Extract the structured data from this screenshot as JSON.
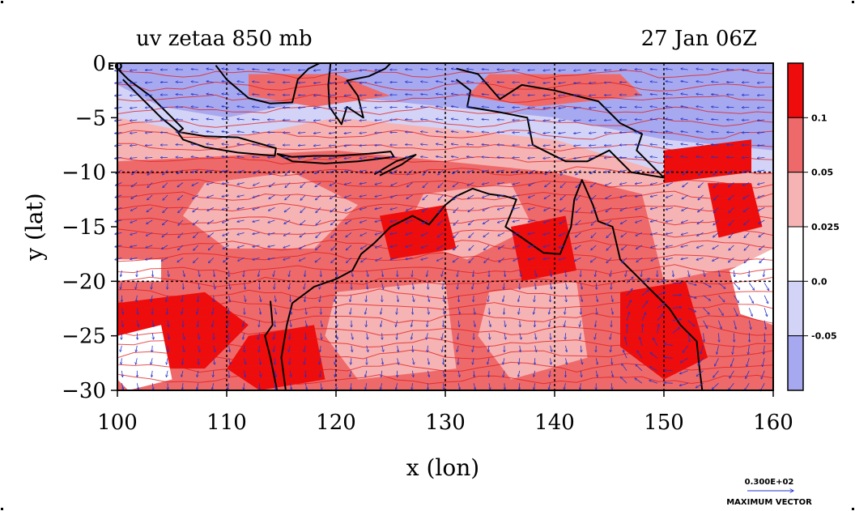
{
  "title_left": "uv zetaa 850 mb",
  "title_right": "27 Jan 06Z",
  "x_label": "x (lon)",
  "y_label": "y (lat)",
  "eq_label": "EQ",
  "legend_ref_value": "0.300E+02",
  "legend_ref_caption": "MAXIMUM VECTOR",
  "colors": {
    "red_strong": "#ee0c0c",
    "red_mid": "#ee6a6a",
    "red_light": "#f6b3b3",
    "white": "#ffffff",
    "blue_light": "#d3d3f7",
    "blue_mid": "#a7a9f0",
    "contour": "#e01818",
    "vector": "#2233cc",
    "coast": "#000000"
  },
  "chart_data": {
    "type": "heatmap",
    "x_axis": {
      "label": "x (lon)",
      "range": [
        100,
        160
      ],
      "ticks": [
        100,
        110,
        120,
        130,
        140,
        150,
        160
      ]
    },
    "y_axis": {
      "label": "y (lat)",
      "range": [
        -30,
        0
      ],
      "ticks": [
        0,
        -5,
        -10,
        -15,
        -20,
        -25,
        -30
      ]
    },
    "grid_lines_lon": [
      110,
      120,
      130,
      140,
      150
    ],
    "grid_lines_lat": [
      -10,
      -20
    ],
    "colorbar": {
      "labels": [
        "0.1",
        "0.05",
        "0.025",
        "0.0",
        "-0.05"
      ],
      "bins": [
        {
          "color": "#ee0c0c",
          "range": "> 0.1"
        },
        {
          "color": "#ee6a6a",
          "range": "0.05 – 0.1"
        },
        {
          "color": "#f6b3b3",
          "range": "0.025 – 0.05"
        },
        {
          "color": "#ffffff",
          "range": "0.0 – 0.025"
        },
        {
          "color": "#d3d3f7",
          "range": "-0.05 – 0.0"
        },
        {
          "color": "#a7a9f0",
          "range": "< -0.05"
        }
      ]
    },
    "regions": [
      {
        "fill": "#f6b3b3",
        "pts": [
          [
            100,
            -7
          ],
          [
            160,
            -7
          ],
          [
            160,
            -30
          ],
          [
            100,
            -30
          ]
        ]
      },
      {
        "fill": "#ee6a6a",
        "pts": [
          [
            100,
            -9
          ],
          [
            120,
            -8
          ],
          [
            140,
            -10
          ],
          [
            148,
            -12
          ],
          [
            150,
            -20
          ],
          [
            160,
            -18
          ],
          [
            160,
            -30
          ],
          [
            100,
            -30
          ]
        ]
      },
      {
        "fill": "#f6b3b3",
        "pts": [
          [
            108,
            -11
          ],
          [
            116,
            -10
          ],
          [
            122,
            -13
          ],
          [
            118,
            -17
          ],
          [
            110,
            -17
          ],
          [
            106,
            -14
          ]
        ]
      },
      {
        "fill": "#f6b3b3",
        "pts": [
          [
            128,
            -12
          ],
          [
            136,
            -11
          ],
          [
            138,
            -15
          ],
          [
            132,
            -18
          ],
          [
            126,
            -16
          ]
        ]
      },
      {
        "fill": "#f6b3b3",
        "pts": [
          [
            120,
            -21
          ],
          [
            130,
            -20
          ],
          [
            131,
            -28
          ],
          [
            122,
            -29
          ],
          [
            119,
            -25
          ]
        ]
      },
      {
        "fill": "#f6b3b3",
        "pts": [
          [
            134,
            -21
          ],
          [
            142,
            -20
          ],
          [
            143,
            -27
          ],
          [
            136,
            -29
          ],
          [
            133,
            -25
          ]
        ]
      },
      {
        "fill": "#ee0c0c",
        "pts": [
          [
            100,
            -22
          ],
          [
            108,
            -21
          ],
          [
            112,
            -24
          ],
          [
            108,
            -28
          ],
          [
            100,
            -28
          ]
        ]
      },
      {
        "fill": "#ee0c0c",
        "pts": [
          [
            112,
            -25
          ],
          [
            118,
            -24
          ],
          [
            119,
            -29
          ],
          [
            113,
            -30
          ],
          [
            110,
            -28
          ]
        ]
      },
      {
        "fill": "#ee0c0c",
        "pts": [
          [
            124,
            -14
          ],
          [
            130,
            -13
          ],
          [
            131,
            -17
          ],
          [
            125,
            -18
          ]
        ]
      },
      {
        "fill": "#ee0c0c",
        "pts": [
          [
            136,
            -15
          ],
          [
            141,
            -14
          ],
          [
            142,
            -19
          ],
          [
            137,
            -20
          ]
        ]
      },
      {
        "fill": "#ee0c0c",
        "pts": [
          [
            146,
            -21
          ],
          [
            152,
            -20
          ],
          [
            154,
            -27
          ],
          [
            150,
            -29
          ],
          [
            146,
            -26
          ]
        ]
      },
      {
        "fill": "#ee0c0c",
        "pts": [
          [
            154,
            -11
          ],
          [
            158,
            -11
          ],
          [
            159,
            -15
          ],
          [
            155,
            -16
          ]
        ]
      },
      {
        "fill": "#ffffff",
        "pts": [
          [
            100,
            -25
          ],
          [
            104,
            -24
          ],
          [
            105,
            -29
          ],
          [
            101,
            -30
          ],
          [
            100,
            -29
          ]
        ]
      },
      {
        "fill": "#ffffff",
        "pts": [
          [
            100,
            -18
          ],
          [
            104,
            -18
          ],
          [
            104,
            -20
          ],
          [
            100,
            -20
          ]
        ]
      },
      {
        "fill": "#ffffff",
        "pts": [
          [
            156,
            -19
          ],
          [
            160,
            -17
          ],
          [
            160,
            -24
          ],
          [
            157,
            -23
          ]
        ]
      },
      {
        "fill": "#a7a9f0",
        "pts": [
          [
            100,
            0
          ],
          [
            160,
            0
          ],
          [
            160,
            -8
          ],
          [
            150,
            -7
          ],
          [
            140,
            -5
          ],
          [
            130,
            -4
          ],
          [
            120,
            -3
          ],
          [
            110,
            -5
          ],
          [
            104,
            -4
          ],
          [
            100,
            -2
          ]
        ]
      },
      {
        "fill": "#d3d3f7",
        "pts": [
          [
            100,
            -2
          ],
          [
            104,
            -4
          ],
          [
            110,
            -5
          ],
          [
            120,
            -3
          ],
          [
            130,
            -4
          ],
          [
            140,
            -5
          ],
          [
            150,
            -7
          ],
          [
            160,
            -8
          ],
          [
            160,
            -10
          ],
          [
            150,
            -10
          ],
          [
            140,
            -7
          ],
          [
            130,
            -6
          ],
          [
            120,
            -5
          ],
          [
            110,
            -7
          ],
          [
            100,
            -5
          ]
        ]
      },
      {
        "fill": "#ee6a6a",
        "pts": [
          [
            112,
            -1
          ],
          [
            120,
            -1
          ],
          [
            125,
            -3
          ],
          [
            118,
            -4
          ],
          [
            112,
            -3
          ]
        ]
      },
      {
        "fill": "#ee6a6a",
        "pts": [
          [
            134,
            -1
          ],
          [
            146,
            -1
          ],
          [
            148,
            -3
          ],
          [
            138,
            -4
          ],
          [
            132,
            -3
          ]
        ]
      },
      {
        "fill": "#ee0c0c",
        "pts": [
          [
            150,
            -8
          ],
          [
            158,
            -7
          ],
          [
            158,
            -10
          ],
          [
            150,
            -11
          ]
        ]
      }
    ],
    "coastlines": [
      {
        "name": "sumatra",
        "pts": [
          [
            100,
            -0.5
          ],
          [
            101,
            -1.5
          ],
          [
            103,
            -3
          ],
          [
            105,
            -5
          ],
          [
            106,
            -6
          ],
          [
            105.6,
            -6.3
          ],
          [
            104,
            -5
          ],
          [
            102,
            -3
          ],
          [
            100.5,
            -1.5
          ]
        ]
      },
      {
        "name": "java",
        "pts": [
          [
            105.5,
            -6.3
          ],
          [
            108,
            -6.7
          ],
          [
            111,
            -6.8
          ],
          [
            114.5,
            -7.8
          ],
          [
            114.4,
            -8.5
          ],
          [
            111,
            -8.2
          ],
          [
            108,
            -7.7
          ],
          [
            106,
            -7
          ],
          [
            105.5,
            -6.3
          ]
        ]
      },
      {
        "name": "lesser-sunda",
        "pts": [
          [
            114.6,
            -8.3
          ],
          [
            116,
            -8.6
          ],
          [
            118,
            -8.5
          ],
          [
            120,
            -8.5
          ],
          [
            123,
            -8.3
          ],
          [
            125,
            -8.1
          ],
          [
            125.3,
            -8.6
          ],
          [
            122,
            -9
          ],
          [
            119,
            -9.2
          ],
          [
            116,
            -9
          ],
          [
            114.6,
            -8.3
          ]
        ]
      },
      {
        "name": "timor",
        "pts": [
          [
            123.5,
            -10.2
          ],
          [
            125.5,
            -9
          ],
          [
            127.3,
            -8.4
          ],
          [
            126,
            -9.3
          ],
          [
            124,
            -10.3
          ]
        ]
      },
      {
        "name": "borneo",
        "pts": [
          [
            109,
            -0.2
          ],
          [
            110,
            -1.5
          ],
          [
            112,
            -3.2
          ],
          [
            114,
            -3.7
          ],
          [
            116,
            -3.6
          ],
          [
            116.5,
            -1.5
          ],
          [
            117.5,
            -0.5
          ],
          [
            118.5,
            0
          ]
        ]
      },
      {
        "name": "sulawesi",
        "pts": [
          [
            119.5,
            0
          ],
          [
            119.3,
            -2
          ],
          [
            119.4,
            -4
          ],
          [
            120.5,
            -5.6
          ],
          [
            121,
            -4
          ],
          [
            122.5,
            -5
          ],
          [
            122,
            -3
          ],
          [
            121,
            -1.6
          ],
          [
            123,
            -1.2
          ],
          [
            124.5,
            -0.5
          ],
          [
            125,
            0
          ]
        ]
      },
      {
        "name": "new-guinea",
        "pts": [
          [
            131,
            -0.5
          ],
          [
            133,
            -1
          ],
          [
            135,
            -3.3
          ],
          [
            137,
            -2
          ],
          [
            140,
            -2.5
          ],
          [
            144,
            -3.5
          ],
          [
            146,
            -5.5
          ],
          [
            148,
            -6.5
          ],
          [
            147.5,
            -8
          ],
          [
            150,
            -10.5
          ],
          [
            147,
            -10
          ],
          [
            145,
            -8
          ],
          [
            143,
            -9
          ],
          [
            141,
            -9
          ],
          [
            139,
            -8
          ],
          [
            138,
            -7.5
          ],
          [
            137.5,
            -5
          ],
          [
            135,
            -4.5
          ],
          [
            132,
            -4
          ],
          [
            132.3,
            -2.5
          ],
          [
            131,
            -1.5
          ]
        ]
      },
      {
        "name": "australia",
        "pts": [
          [
            114,
            -21.8
          ],
          [
            114.2,
            -24
          ],
          [
            113.5,
            -25
          ],
          [
            114,
            -27
          ],
          [
            114.6,
            -30
          ],
          [
            115.4,
            -30
          ],
          [
            115,
            -27
          ],
          [
            115.5,
            -24
          ],
          [
            116,
            -22
          ],
          [
            118,
            -20.5
          ],
          [
            120,
            -19.8
          ],
          [
            121.5,
            -19
          ],
          [
            122.3,
            -17.5
          ],
          [
            123.5,
            -16.5
          ],
          [
            125,
            -15
          ],
          [
            127,
            -14
          ],
          [
            128.5,
            -14.8
          ],
          [
            130,
            -13
          ],
          [
            131,
            -12.2
          ],
          [
            132.5,
            -11.5
          ],
          [
            134,
            -12
          ],
          [
            135.5,
            -12.2
          ],
          [
            136.5,
            -12.5
          ],
          [
            136,
            -13.8
          ],
          [
            135.5,
            -15
          ],
          [
            137,
            -16
          ],
          [
            139,
            -17.4
          ],
          [
            140.5,
            -17.5
          ],
          [
            141.5,
            -15
          ],
          [
            141.8,
            -12.5
          ],
          [
            142.5,
            -10.7
          ],
          [
            143.5,
            -13
          ],
          [
            144,
            -14.5
          ],
          [
            145.3,
            -15
          ],
          [
            146,
            -18
          ],
          [
            147.5,
            -19.5
          ],
          [
            149,
            -21
          ],
          [
            150.5,
            -22.5
          ],
          [
            151.5,
            -24
          ],
          [
            153,
            -25.5
          ],
          [
            153.2,
            -27.5
          ],
          [
            153.5,
            -30
          ]
        ]
      }
    ],
    "vector_arrows": "u,v wind vectors at 850 mb over the full domain"
  }
}
